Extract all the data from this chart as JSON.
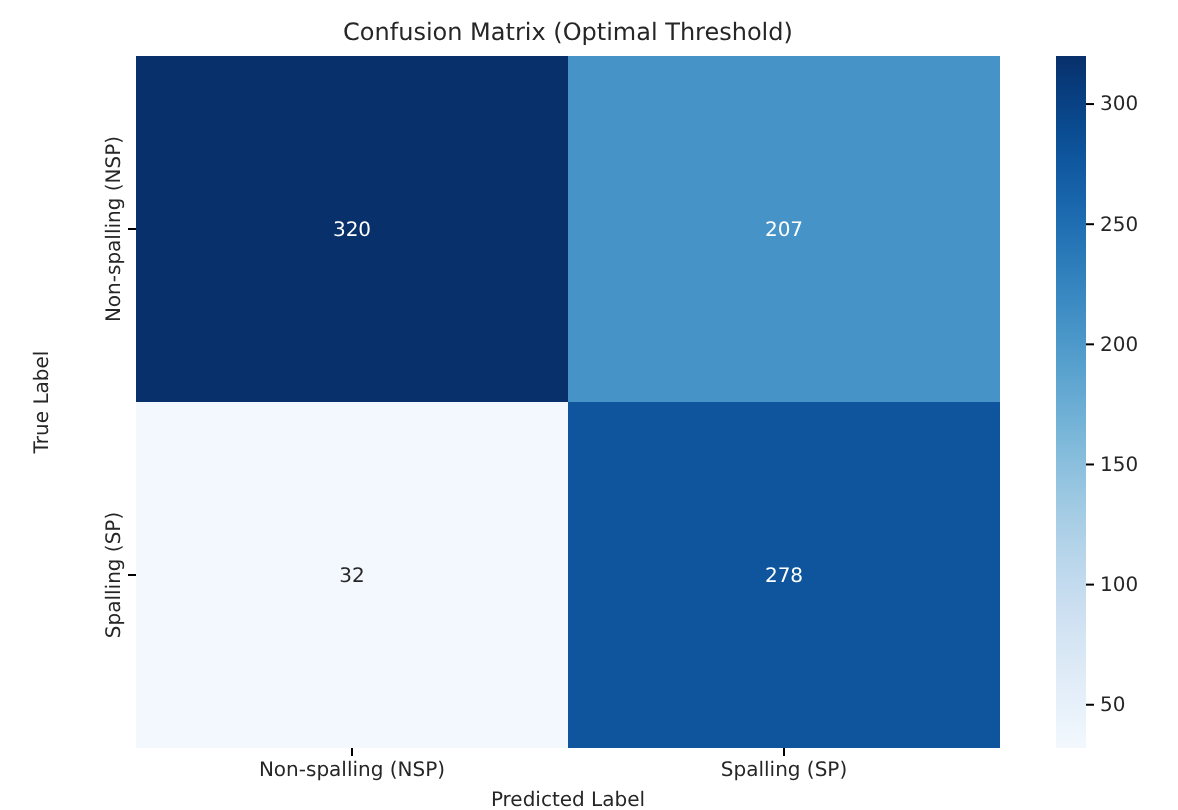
{
  "chart_data": {
    "type": "heatmap",
    "title": "Confusion Matrix (Optimal Threshold)",
    "xlabel": "Predicted Label",
    "ylabel": "True Label",
    "categories": [
      "Non-spalling (NSP)",
      "Spalling (SP)"
    ],
    "y_categories": [
      "Non-spalling (NSP)",
      "Spalling (SP)"
    ],
    "cells": [
      [
        320,
        207
      ],
      [
        32,
        278
      ]
    ],
    "data_labels": true,
    "clim": [
      32,
      320
    ],
    "cticks": [
      50,
      100,
      150,
      200,
      250,
      300
    ]
  }
}
